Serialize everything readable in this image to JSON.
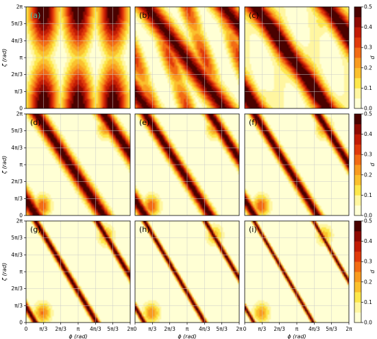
{
  "chart_data": {
    "type": "heatmap",
    "panel_labels": [
      "(a)",
      "(b)",
      "(c)",
      "(d)",
      "(e)",
      "(f)",
      "(g)",
      "(h)",
      "(i)"
    ],
    "xlabel": "ϕ (rad)",
    "ylabel": "ζ (rad)",
    "x_range": [
      0,
      6.2832
    ],
    "y_range": [
      0,
      6.2832
    ],
    "x_ticks": [
      "0",
      "π/3",
      "2π/3",
      "π",
      "4π/3",
      "5π/3",
      "2π"
    ],
    "y_ticks": [
      "0",
      "π/3",
      "2π/3",
      "π",
      "4π/3",
      "5π/3",
      "2π"
    ],
    "colorbar": {
      "label": "d",
      "range": [
        0,
        0.5
      ],
      "ticks": [
        "0.0",
        "0.1",
        "0.2",
        "0.3",
        "0.4",
        "0.5"
      ],
      "levels": [
        0,
        0.05,
        0.1,
        0.15,
        0.2,
        0.25,
        0.3,
        0.35,
        0.4,
        0.45,
        0.5
      ],
      "colors": [
        "#ffffd4",
        "#fff6a0",
        "#fde74c",
        "#fbc02d",
        "#f99b1f",
        "#f26b14",
        "#e03a0b",
        "#c11b05",
        "#8e0a02",
        "#4a0200"
      ]
    },
    "grid": true,
    "panels": [
      {
        "label": "(a)",
        "regime": "broad-blobs",
        "max_d": 0.5
      },
      {
        "label": "(b)",
        "regime": "mixed-bands",
        "max_d": 0.5
      },
      {
        "label": "(c)",
        "regime": "diagonal-band",
        "max_d": 0.5
      },
      {
        "label": "(d)",
        "regime": "diagonal-band",
        "max_d": 0.5
      },
      {
        "label": "(e)",
        "regime": "diagonal-band",
        "max_d": 0.5
      },
      {
        "label": "(f)",
        "regime": "diagonal-band",
        "max_d": 0.5
      },
      {
        "label": "(g)",
        "regime": "thin-diagonal-band",
        "max_d": 0.5
      },
      {
        "label": "(h)",
        "regime": "thin-diagonal-band",
        "max_d": 0.5
      },
      {
        "label": "(i)",
        "regime": "thin-diagonal-band",
        "max_d": 0.5
      }
    ]
  }
}
